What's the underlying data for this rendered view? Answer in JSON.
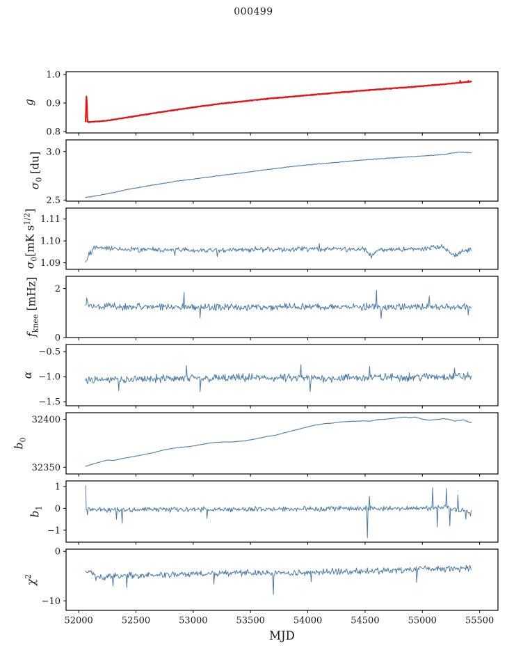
{
  "title": "000499",
  "xlabel": "MJD",
  "colors": {
    "line_blue": "#4a7aab",
    "line_red": "#f01010",
    "frame": "#000000",
    "text": "#1a1a1a"
  },
  "chart_data": {
    "type": "line",
    "title": "000499",
    "xlabel": "MJD",
    "grid": false,
    "legend": "none",
    "xlim": [
      51890,
      55660
    ],
    "xticks": [
      {
        "v": 52000,
        "label": "52000"
      },
      {
        "v": 52500,
        "label": "52500"
      },
      {
        "v": 53000,
        "label": "53000"
      },
      {
        "v": 53500,
        "label": "53500"
      },
      {
        "v": 54000,
        "label": "54000"
      },
      {
        "v": 54500,
        "label": "54500"
      },
      {
        "v": 55000,
        "label": "55000"
      },
      {
        "v": 55500,
        "label": "55500"
      }
    ],
    "subplots": [
      {
        "name": "g",
        "ylabel_text": "g",
        "ylabel_segments": [
          {
            "t": "g",
            "i": true
          }
        ],
        "ylim": [
          0.795,
          1.01
        ],
        "yticks": [
          {
            "v": 0.8,
            "label": "0.8"
          },
          {
            "v": 0.9,
            "label": "0.9"
          },
          {
            "v": 1.0,
            "label": "1.0"
          }
        ],
        "series": [
          {
            "name": "g-smooth-blue-line",
            "color": "#4a7aab",
            "width": 1.3,
            "step": 6,
            "noise": 0.0008,
            "seed": 11,
            "anchors_x": [
              52060,
              52100,
              52250,
              52450,
              52650,
              52850,
              53050,
              53250,
              53450,
              53650,
              53850,
              54050,
              54250,
              54450,
              54650,
              54850,
              55050,
              55250,
              55430
            ],
            "anchors_y": [
              0.836,
              0.8345,
              0.8395,
              0.8525,
              0.8655,
              0.8775,
              0.889,
              0.8995,
              0.908,
              0.9165,
              0.9235,
              0.9305,
              0.9375,
              0.944,
              0.9505,
              0.956,
              0.9625,
              0.9695,
              0.976
            ]
          },
          {
            "name": "g-data-red-line",
            "color": "#f01010",
            "width": 2.1,
            "step": 4,
            "noise": 0.0016,
            "seed": 23,
            "anchors_x": [
              52060,
              52100,
              52250,
              52450,
              52650,
              52850,
              53050,
              53250,
              53450,
              53650,
              53850,
              54050,
              54250,
              54450,
              54650,
              54850,
              55050,
              55250,
              55430
            ],
            "anchors_y": [
              0.8345,
              0.833,
              0.838,
              0.851,
              0.864,
              0.876,
              0.8875,
              0.898,
              0.9065,
              0.915,
              0.922,
              0.929,
              0.936,
              0.9425,
              0.949,
              0.9545,
              0.961,
              0.968,
              0.9755
            ],
            "spikes": [
              [
                52064,
                0.88
              ],
              [
                52068,
                0.923
              ],
              [
                52072,
                0.9
              ],
              [
                52076,
                0.845
              ],
              [
                55330,
                0.978
              ],
              [
                55370,
                0.9745
              ],
              [
                55402,
                0.978
              ],
              [
                55426,
                0.976
              ]
            ]
          }
        ]
      },
      {
        "name": "sigma0-du",
        "ylabel_text": "sigma_0 [du]",
        "ylabel_segments": [
          {
            "t": "σ",
            "i": true
          },
          {
            "t": "0",
            "sub": true
          },
          {
            "t": " [du]"
          }
        ],
        "ylim": [
          2.49,
          3.12
        ],
        "yticks": [
          {
            "v": 2.5,
            "label": "2.5"
          },
          {
            "v": 3.0,
            "label": "3.0"
          }
        ],
        "series": [
          {
            "name": "sigma0-du-line",
            "color": "#4a7aab",
            "width": 1.1,
            "step": 6,
            "noise": 0.004,
            "seed": 31,
            "anchors_x": [
              52060,
              52250,
              52450,
              52650,
              52850,
              53050,
              53250,
              53450,
              53650,
              53850,
              54050,
              54250,
              54450,
              54650,
              54850,
              55050,
              55200,
              55320,
              55430
            ],
            "anchors_y": [
              2.528,
              2.565,
              2.615,
              2.655,
              2.695,
              2.725,
              2.755,
              2.785,
              2.815,
              2.845,
              2.868,
              2.888,
              2.91,
              2.928,
              2.943,
              2.958,
              2.972,
              2.995,
              2.988
            ]
          }
        ]
      },
      {
        "name": "sigma0-mks",
        "ylabel_text": "sigma_0 [mK s^1/2]",
        "ylabel_segments": [
          {
            "t": "σ",
            "i": true
          },
          {
            "t": "0",
            "sub": true
          },
          {
            "t": "[mK s"
          },
          {
            "t": "1/2",
            "sup": true
          },
          {
            "t": "]"
          }
        ],
        "ylim": [
          1.087,
          1.115
        ],
        "yticks": [
          {
            "v": 1.09,
            "label": "1.09"
          },
          {
            "v": 1.1,
            "label": "1.10"
          },
          {
            "v": 1.11,
            "label": "1.11"
          }
        ],
        "series": [
          {
            "name": "sigma0-mks-line",
            "color": "#4a7aab",
            "width": 1.0,
            "step": 6,
            "noise": 0.0014,
            "seed": 41,
            "anchors_x": [
              52060,
              52090,
              52140,
              52350,
              53000,
              53500,
              54000,
              54500,
              54560,
              54620,
              55000,
              55180,
              55280,
              55350,
              55430
            ],
            "anchors_y": [
              1.0902,
              1.0938,
              1.0972,
              1.0962,
              1.0957,
              1.096,
              1.0963,
              1.096,
              1.093,
              1.096,
              1.0963,
              1.0975,
              1.0932,
              1.095,
              1.0958
            ],
            "spikes": [
              [
                52840,
                1.0932
              ],
              [
                53210,
                1.0928
              ],
              [
                54100,
                1.0988
              ]
            ]
          }
        ]
      },
      {
        "name": "fknee",
        "ylabel_text": "f_knee [mHz]",
        "ylabel_segments": [
          {
            "t": "f",
            "i": true
          },
          {
            "t": "knee",
            "sub": true
          },
          {
            "t": " [mHz]"
          }
        ],
        "ylim": [
          0,
          2.5
        ],
        "yticks": [
          {
            "v": 0,
            "label": "0"
          },
          {
            "v": 2,
            "label": "2"
          }
        ],
        "series": [
          {
            "name": "fknee-line",
            "color": "#4a7aab",
            "width": 1.0,
            "step": 6,
            "noise": 0.17,
            "seed": 53,
            "anchors_x": [
              52060,
              52150,
              53000,
              54000,
              55000,
              55430
            ],
            "anchors_y": [
              1.4,
              1.27,
              1.24,
              1.25,
              1.24,
              1.26
            ],
            "spikes": [
              [
                52070,
                1.62
              ],
              [
                52920,
                1.85
              ],
              [
                53060,
                0.8
              ],
              [
                54600,
                1.93
              ],
              [
                54640,
                0.78
              ],
              [
                55060,
                1.68
              ],
              [
                55400,
                0.92
              ]
            ]
          }
        ]
      },
      {
        "name": "alpha",
        "ylabel_text": "alpha",
        "ylabel_segments": [
          {
            "t": "α",
            "i": true
          }
        ],
        "ylim": [
          -1.58,
          -0.36
        ],
        "yticks": [
          {
            "v": -1.5,
            "label": "−1.5"
          },
          {
            "v": -1.0,
            "label": "−1.0"
          },
          {
            "v": -0.5,
            "label": "−0.5"
          }
        ],
        "series": [
          {
            "name": "alpha-line",
            "color": "#4a7aab",
            "width": 1.0,
            "step": 6,
            "noise": 0.1,
            "seed": 61,
            "anchors_x": [
              52060,
              52500,
              53000,
              53500,
              54000,
              54500,
              55000,
              55430
            ],
            "anchors_y": [
              -1.06,
              -1.045,
              -1.04,
              -1.025,
              -1.035,
              -1.02,
              -1.005,
              -0.995
            ],
            "spikes": [
              [
                52350,
                -1.28
              ],
              [
                52940,
                -0.78
              ],
              [
                53060,
                -1.3
              ],
              [
                53940,
                -0.76
              ],
              [
                54020,
                -1.3
              ],
              [
                54540,
                -0.8
              ],
              [
                55280,
                -0.83
              ]
            ]
          }
        ]
      },
      {
        "name": "b0",
        "ylabel_text": "b_0",
        "ylabel_segments": [
          {
            "t": "b",
            "i": true
          },
          {
            "t": "0",
            "sub": true
          }
        ],
        "ylim": [
          32343,
          32407
        ],
        "yticks": [
          {
            "v": 32350,
            "label": "32350"
          },
          {
            "v": 32400,
            "label": "32400"
          }
        ],
        "series": [
          {
            "name": "b0-line",
            "color": "#4a7aab",
            "width": 1.1,
            "step": 8,
            "noise": 0.18,
            "seed": 71,
            "anchors_x": [
              52060,
              52140,
              52250,
              52310,
              52420,
              52560,
              52660,
              52760,
              52860,
              52960,
              53060,
              53160,
              53260,
              53330,
              53460,
              53560,
              53660,
              53720,
              53780,
              53860,
              53960,
              54060,
              54140,
              54200,
              54300,
              54400,
              54480,
              54540,
              54600,
              54700,
              54790,
              54840,
              54890,
              54940,
              55000,
              55060,
              55120,
              55180,
              55240,
              55280,
              55320,
              55360,
              55400,
              55430
            ],
            "anchors_y": [
              32351,
              32354,
              32357.5,
              32357.2,
              32360,
              32363,
              32365.5,
              32368.5,
              32370.5,
              32371.5,
              32373.5,
              32375.5,
              32376.5,
              32376.3,
              32377.8,
              32380,
              32382.5,
              32383.5,
              32385.5,
              32388,
              32391,
              32394,
              32395.5,
              32396,
              32397.5,
              32398,
              32398.5,
              32398.2,
              32399.5,
              32400.5,
              32401.8,
              32402.5,
              32402,
              32402.4,
              32400.2,
              32399.2,
              32399.8,
              32400.8,
              32399.8,
              32398.3,
              32399,
              32399.6,
              32397.5,
              32396.5
            ]
          }
        ]
      },
      {
        "name": "b1",
        "ylabel_text": "b_1",
        "ylabel_segments": [
          {
            "t": "b",
            "i": true
          },
          {
            "t": "1",
            "sub": true
          }
        ],
        "ylim": [
          -1.55,
          1.26
        ],
        "yticks": [
          {
            "v": -1,
            "label": "−1"
          },
          {
            "v": 0,
            "label": "0"
          },
          {
            "v": 1,
            "label": "1"
          }
        ],
        "series": [
          {
            "name": "b1-line",
            "color": "#4a7aab",
            "width": 1.0,
            "step": 6,
            "noise": 0.14,
            "seed": 83,
            "anchors_x": [
              52060,
              52200,
              53000,
              54000,
              54800,
              55200,
              55430
            ],
            "anchors_y": [
              -0.02,
              -0.07,
              -0.05,
              -0.02,
              0,
              0.02,
              -0.2
            ],
            "spikes": [
              [
                52062,
                1.05
              ],
              [
                52076,
                -0.3
              ],
              [
                52330,
                -0.5
              ],
              [
                52380,
                -0.68
              ],
              [
                53120,
                -0.45
              ],
              [
                54520,
                -1.35
              ],
              [
                54538,
                0.55
              ],
              [
                55090,
                0.95
              ],
              [
                55130,
                -0.85
              ],
              [
                55210,
                0.92
              ],
              [
                55240,
                -0.8
              ],
              [
                55310,
                0.62
              ],
              [
                55380,
                -0.5
              ],
              [
                55420,
                -0.35
              ]
            ]
          }
        ]
      },
      {
        "name": "chi2",
        "ylabel_text": "chi^2",
        "ylabel_segments": [
          {
            "t": "χ",
            "i": true
          },
          {
            "t": "2",
            "sup": true
          }
        ],
        "ylim": [
          -11.9,
          0.45
        ],
        "yticks": [
          {
            "v": -10,
            "label": "−10"
          },
          {
            "v": 0,
            "label": "0"
          }
        ],
        "series": [
          {
            "name": "chi2-line",
            "color": "#4a7aab",
            "width": 1.0,
            "step": 6,
            "noise": 0.8,
            "seed": 97,
            "anchors_x": [
              52060,
              52200,
              52360,
              52550,
              53000,
              53400,
              53800,
              54200,
              54700,
              55100,
              55430
            ],
            "anchors_y": [
              -4,
              -5.3,
              -4.9,
              -4.9,
              -4.6,
              -4.3,
              -4.4,
              -4.1,
              -3.9,
              -3.5,
              -3.5
            ],
            "spikes": [
              [
                52150,
                -5.9
              ],
              [
                52300,
                -7.0
              ],
              [
                52420,
                -7.3
              ],
              [
                53180,
                -6.6
              ],
              [
                53700,
                -8.7
              ],
              [
                54030,
                -6.1
              ],
              [
                54950,
                -6.3
              ]
            ]
          }
        ]
      }
    ]
  }
}
